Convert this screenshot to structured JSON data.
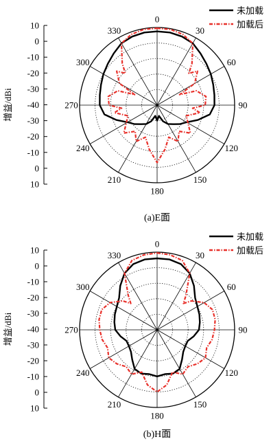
{
  "chart_data": [
    {
      "type": "polar-line",
      "caption": "(a)E面",
      "ylabel": "增益/dBi",
      "radial_ticks": [
        "10",
        "0",
        "-10",
        "-20",
        "-30",
        "-40",
        "-30",
        "-20",
        "-10",
        "0",
        "10"
      ],
      "r_range": [
        -40,
        10
      ],
      "angle_labels": [
        "0",
        "30",
        "60",
        "90",
        "120",
        "150",
        "180",
        "210",
        "240",
        "270",
        "300",
        "330"
      ],
      "grid": true,
      "legend_position": "top-right",
      "series": [
        {
          "name": "未加载",
          "style": "solid",
          "color": "#000000",
          "angles": [
            0,
            10,
            20,
            30,
            40,
            50,
            60,
            70,
            80,
            90,
            100,
            110,
            120,
            130,
            140,
            150,
            160,
            170,
            180,
            190,
            200,
            210,
            220,
            230,
            240,
            250,
            260,
            270,
            280,
            290,
            300,
            310,
            320,
            330,
            340,
            350
          ],
          "values": [
            7.5,
            7.5,
            7.0,
            6.0,
            3.5,
            1.5,
            0,
            -1.5,
            -2.5,
            -3,
            -5.5,
            -12,
            -18,
            -21,
            -24,
            -26,
            -29,
            -33,
            -30,
            -33,
            -29,
            -26,
            -24,
            -21,
            -18,
            -12,
            -5.5,
            -3,
            -2.5,
            -1.5,
            0,
            1.5,
            3.5,
            6.0,
            7.0,
            7.5
          ]
        },
        {
          "name": "加载后",
          "style": "dash-dot",
          "color": "#e8302a",
          "angles": [
            0,
            10,
            20,
            30,
            40,
            45,
            50,
            60,
            65,
            70,
            80,
            90,
            95,
            100,
            110,
            120,
            130,
            140,
            150,
            160,
            170,
            180,
            190,
            200,
            210,
            220,
            230,
            240,
            250,
            260,
            265,
            270,
            280,
            290,
            295,
            300,
            310,
            315,
            320,
            330,
            340,
            350
          ],
          "values": [
            9.5,
            9.5,
            8.5,
            6,
            -5,
            -11,
            -6,
            -12,
            -24,
            -13,
            -8,
            -9,
            -17,
            -12,
            -20,
            -17,
            -12,
            -18,
            -13,
            -18,
            -11,
            -3,
            -11,
            -18,
            -13,
            -18,
            -12,
            -17,
            -20,
            -12,
            -17,
            -9,
            -8,
            -13,
            -24,
            -12,
            -6,
            -11,
            -5,
            6,
            8.5,
            9.5
          ]
        }
      ]
    },
    {
      "type": "polar-line",
      "caption": "(b)H面",
      "ylabel": "增益/dBi",
      "radial_ticks": [
        "10",
        "0",
        "-10",
        "-20",
        "-30",
        "-40",
        "-30",
        "-20",
        "-10",
        "0",
        "10"
      ],
      "r_range": [
        -40,
        10
      ],
      "angle_labels": [
        "0",
        "30",
        "60",
        "90",
        "120",
        "150",
        "180",
        "210",
        "240",
        "270",
        "300",
        "330"
      ],
      "grid": true,
      "legend_position": "top-right",
      "series": [
        {
          "name": "未加载",
          "style": "solid",
          "color": "#000000",
          "angles": [
            0,
            10,
            20,
            30,
            40,
            50,
            60,
            70,
            80,
            90,
            100,
            110,
            120,
            130,
            140,
            150,
            160,
            170,
            180,
            190,
            200,
            210,
            220,
            230,
            240,
            250,
            260,
            270,
            280,
            290,
            300,
            310,
            320,
            330,
            340,
            350
          ],
          "values": [
            6,
            6,
            5,
            2,
            -3,
            -8,
            -10,
            -11,
            -12,
            -13,
            -16,
            -19,
            -19,
            -18,
            -15,
            -11,
            -10,
            -11,
            -10,
            -11,
            -10,
            -11,
            -15,
            -18,
            -19,
            -19,
            -16,
            -13,
            -12,
            -11,
            -10,
            -8,
            -3,
            2,
            5,
            6
          ]
        },
        {
          "name": "加载后",
          "style": "dash-dot",
          "color": "#e8302a",
          "angles": [
            0,
            10,
            20,
            30,
            40,
            45,
            50,
            60,
            70,
            80,
            90,
            100,
            110,
            120,
            130,
            140,
            150,
            160,
            170,
            180,
            190,
            200,
            210,
            220,
            230,
            240,
            250,
            260,
            270,
            280,
            290,
            300,
            310,
            315,
            320,
            330,
            340,
            350
          ],
          "values": [
            9.5,
            9,
            7.5,
            2,
            -11,
            -16,
            -11,
            -5,
            -2,
            -2,
            -3,
            -4,
            -6,
            -4,
            -6,
            -9,
            -7,
            -11,
            -4,
            0,
            -4,
            -11,
            -7,
            -9,
            -6,
            -4,
            -6,
            -4,
            -3,
            -2,
            -2,
            -5,
            -11,
            -16,
            -11,
            2,
            7.5,
            9
          ]
        }
      ]
    }
  ]
}
